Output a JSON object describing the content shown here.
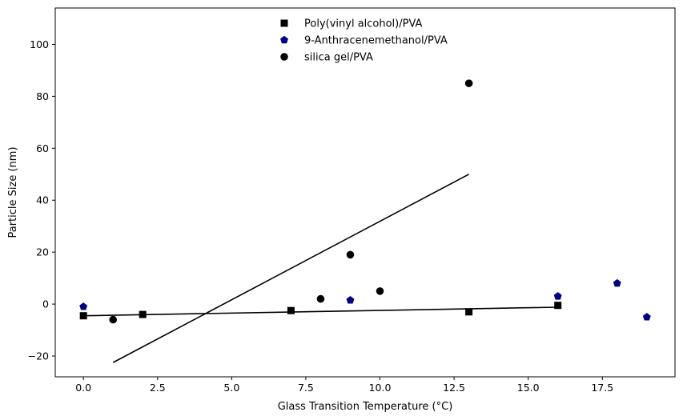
{
  "chart_data": {
    "type": "scatter",
    "title": "",
    "xlabel": "Glass Transition Temperature (°C)",
    "ylabel": "Particle Size (nm)",
    "xlim": [
      -0.95,
      19.95
    ],
    "ylim": [
      -28,
      114
    ],
    "xticks": [
      0.0,
      2.5,
      5.0,
      7.5,
      10.0,
      12.5,
      15.0,
      17.5
    ],
    "xtick_labels": [
      "0.0",
      "2.5",
      "5.0",
      "7.5",
      "10.0",
      "12.5",
      "15.0",
      "17.5"
    ],
    "yticks": [
      -20,
      0,
      20,
      40,
      60,
      80,
      100
    ],
    "ytick_labels": [
      "−20",
      "0",
      "20",
      "40",
      "60",
      "80",
      "100"
    ],
    "grid": false,
    "legend_position": "top-center",
    "series": [
      {
        "name": "Poly(vinyl alcohol)/PVA",
        "marker": "square",
        "color": "#000000",
        "x": [
          0,
          2,
          7,
          13,
          16
        ],
        "y": [
          -4.5,
          -4,
          -2.5,
          -3,
          -0.5
        ]
      },
      {
        "name": "9-Anthracenemethanol/PVA",
        "marker": "pentagon",
        "color": "#000080",
        "x": [
          0,
          9,
          16,
          18,
          19
        ],
        "y": [
          -1,
          1.5,
          3,
          8,
          -5
        ]
      },
      {
        "name": "silica gel/PVA",
        "marker": "circle",
        "color": "#000000",
        "x": [
          1,
          8,
          9,
          10,
          13
        ],
        "y": [
          -6,
          2,
          19,
          5,
          85
        ]
      }
    ],
    "lines": [
      {
        "x": [
          0,
          16
        ],
        "y": [
          -4.5,
          -1.2
        ],
        "color": "#000000"
      },
      {
        "x": [
          1,
          13
        ],
        "y": [
          -22.5,
          50
        ],
        "color": "#000000"
      }
    ]
  }
}
